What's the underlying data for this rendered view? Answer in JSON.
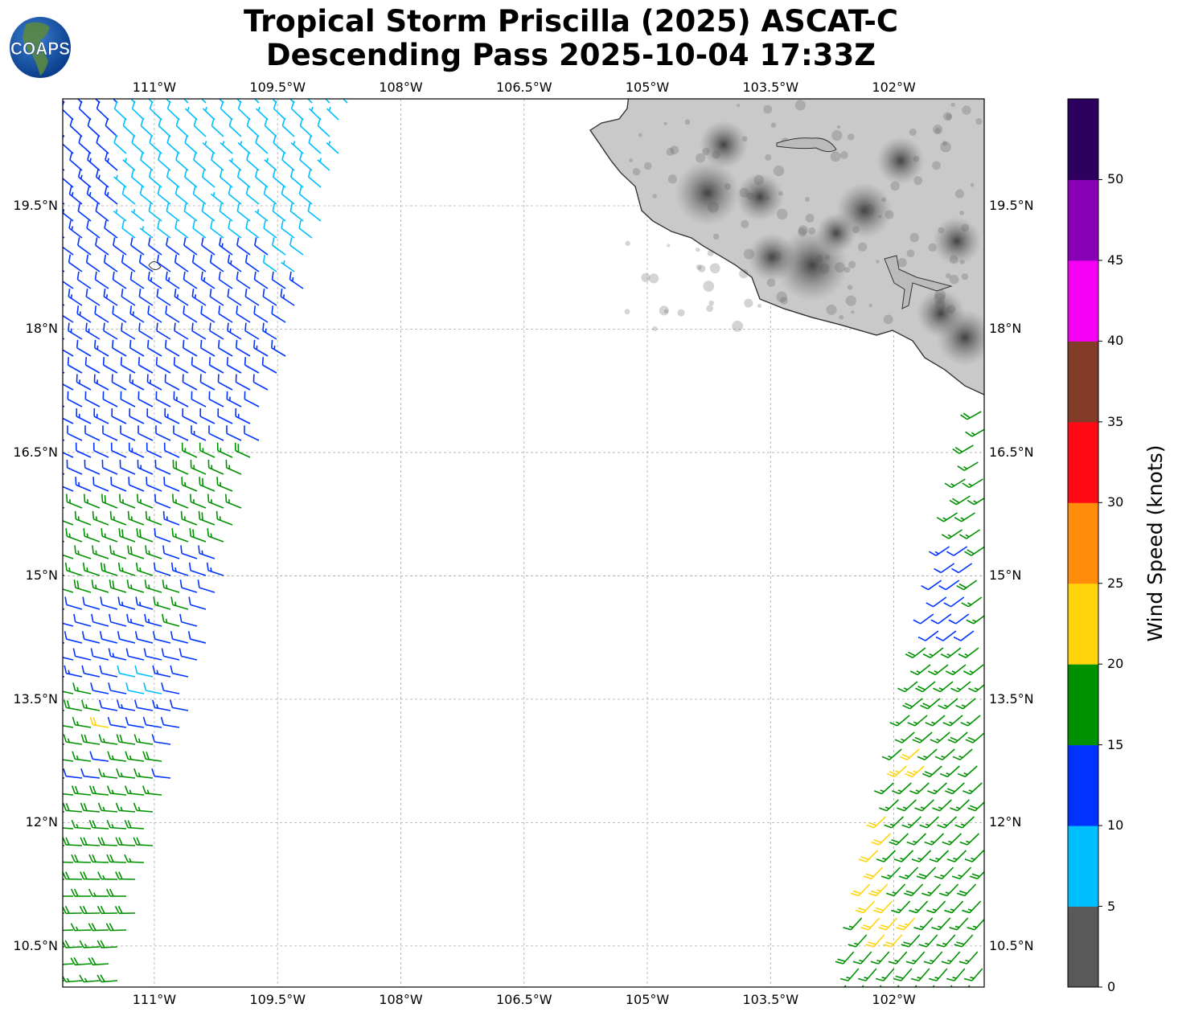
{
  "header": {
    "title_line1": "Tropical Storm Priscilla (2025) ASCAT-C",
    "title_line2": "Descending Pass 2025-10-04 17:33Z",
    "logo_text": "COAPS"
  },
  "map": {
    "extent": {
      "lon_min": -112.115,
      "lon_max": -100.9,
      "lat_min": 10.0,
      "lat_max": 20.8
    },
    "lon_ticks": [
      {
        "value": -111,
        "label": "111°W"
      },
      {
        "value": -109.5,
        "label": "109.5°W"
      },
      {
        "value": -108,
        "label": "108°W"
      },
      {
        "value": -106.5,
        "label": "106.5°W"
      },
      {
        "value": -105,
        "label": "105°W"
      },
      {
        "value": -103.5,
        "label": "103.5°W"
      },
      {
        "value": -102,
        "label": "102°W"
      }
    ],
    "lat_ticks": [
      {
        "value": 19.5,
        "label": "19.5°N"
      },
      {
        "value": 18,
        "label": "18°N"
      },
      {
        "value": 16.5,
        "label": "16.5°N"
      },
      {
        "value": 15,
        "label": "15°N"
      },
      {
        "value": 13.5,
        "label": "13.5°N"
      },
      {
        "value": 12,
        "label": "12°N"
      },
      {
        "value": 10.5,
        "label": "10.5°N"
      }
    ],
    "swaths": [
      {
        "name": "west",
        "wind_from_deg_north": 315,
        "wind_from_deg_south": 265,
        "zones": [
          {
            "lat": [
              19.0,
              21
            ],
            "lon": [
              -111.4,
              -108
            ],
            "speed": 8
          },
          {
            "lat": [
              18.6,
              21
            ],
            "lon": [
              -109.6,
              -108
            ],
            "speed": 8
          },
          {
            "lat": [
              15.4,
              16.6
            ],
            "lon": [
              -110.6,
              -109.6
            ],
            "speed": 17
          },
          {
            "lat": [
              14.6,
              15.9
            ],
            "lon": [
              -112.2,
              -110.9
            ],
            "speed": 17
          },
          {
            "lat": [
              14.3,
              14.9
            ],
            "lon": [
              -110.9,
              -110.5
            ],
            "speed": 17
          },
          {
            "lat": [
              13.5,
              13.8
            ],
            "lon": [
              -111.3,
              -110.9
            ],
            "speed": 9
          },
          {
            "lat": [
              13.1,
              13.3
            ],
            "lon": [
              -111.7,
              -111.5
            ],
            "speed": 22
          },
          {
            "lat": [
              12.6,
              13.6
            ],
            "lon": [
              -112.2,
              -111.6
            ],
            "speed": 17
          },
          {
            "lat": [
              12.0,
              13.0
            ],
            "lon": [
              -111.5,
              -110.9
            ],
            "speed": 17
          },
          {
            "lat": [
              9,
              12.5
            ],
            "lon": [
              -113,
              -108
            ],
            "speed": 18
          }
        ],
        "default_speed": 12
      },
      {
        "name": "east",
        "wind_from_deg_north": 240,
        "wind_from_deg_south": 220,
        "zones": [
          {
            "lat": [
              14.2,
              15.6
            ],
            "lon": [
              -101.6,
              -101.0
            ],
            "speed": 12
          },
          {
            "lat": [
              12.6,
              13.0
            ],
            "lon": [
              -101.9,
              -101.5
            ],
            "speed": 22
          },
          {
            "lat": [
              10.6,
              12.4
            ],
            "lon": [
              -102.3,
              -102.0
            ],
            "speed": 22
          },
          {
            "lat": [
              10.6,
              10.9
            ],
            "lon": [
              -102.0,
              -101.7
            ],
            "speed": 22
          }
        ],
        "default_speed": 17
      }
    ]
  },
  "colorbar": {
    "label": "Wind Speed (knots)",
    "bins": [
      {
        "min": 0,
        "max": 5,
        "color": "#595959"
      },
      {
        "min": 5,
        "max": 10,
        "color": "#00bfff"
      },
      {
        "min": 10,
        "max": 15,
        "color": "#0033ff"
      },
      {
        "min": 15,
        "max": 20,
        "color": "#009100"
      },
      {
        "min": 20,
        "max": 25,
        "color": "#ffd40d"
      },
      {
        "min": 25,
        "max": 30,
        "color": "#ff8c0a"
      },
      {
        "min": 30,
        "max": 35,
        "color": "#ff0a14"
      },
      {
        "min": 35,
        "max": 40,
        "color": "#823c28"
      },
      {
        "min": 40,
        "max": 45,
        "color": "#f500f5"
      },
      {
        "min": 45,
        "max": 50,
        "color": "#8700b4"
      },
      {
        "min": 50,
        "max": 55,
        "color": "#2d005f"
      }
    ],
    "tick_labels": [
      "0",
      "5",
      "10",
      "15",
      "20",
      "25",
      "30",
      "35",
      "40",
      "45",
      "50"
    ]
  }
}
